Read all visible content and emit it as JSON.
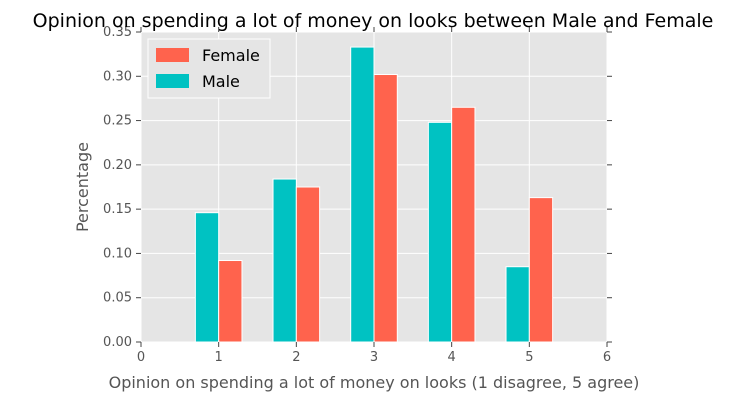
{
  "chart_data": {
    "type": "bar",
    "title": "Opinion on spending a lot of money on looks between Male and Female",
    "xlabel": "Opinion on spending a lot of money on looks (1 disagree, 5 agree)",
    "ylabel": "Percentage",
    "x_ticks": [
      0,
      1,
      2,
      3,
      4,
      5,
      6
    ],
    "x_tick_labels": [
      "0",
      "1",
      "2",
      "3",
      "4",
      "5",
      "6"
    ],
    "y_ticks": [
      0,
      0.05,
      0.1,
      0.15,
      0.2,
      0.25,
      0.3,
      0.35
    ],
    "y_tick_labels": [
      "0.00",
      "0.05",
      "0.10",
      "0.15",
      "0.20",
      "0.25",
      "0.30",
      "0.35"
    ],
    "xlim": [
      0,
      6
    ],
    "ylim": [
      0,
      0.35
    ],
    "grid": true,
    "legend_position": "top-left",
    "categories": [
      1,
      2,
      3,
      4,
      5
    ],
    "series": [
      {
        "name": "Male",
        "color": "#00c2c2",
        "values": [
          0.146,
          0.184,
          0.333,
          0.248,
          0.085
        ]
      },
      {
        "name": "Female",
        "color": "#ff634d",
        "values": [
          0.092,
          0.175,
          0.302,
          0.265,
          0.163
        ]
      }
    ],
    "legend_entries": [
      {
        "name": "Female",
        "color": "#ff634d"
      },
      {
        "name": "Male",
        "color": "#00c2c2"
      }
    ]
  }
}
